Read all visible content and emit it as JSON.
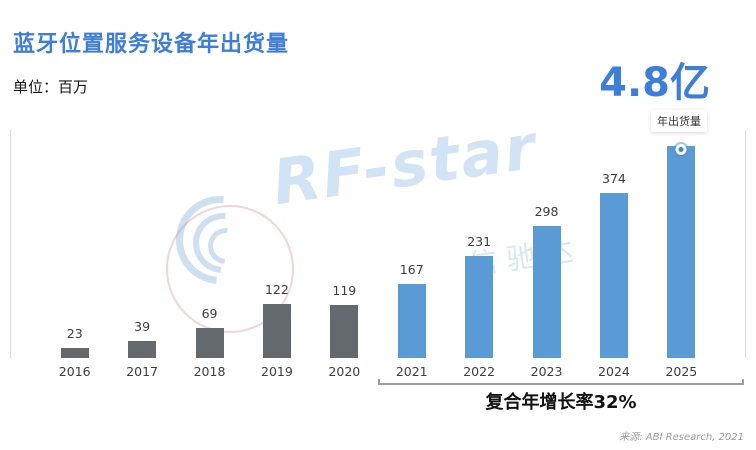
{
  "header": {
    "title": "蓝牙位置服务设备年出货量",
    "unit_label": "单位：百万",
    "highlight_value": "4.8亿"
  },
  "chart_data": {
    "type": "bar",
    "title": "蓝牙位置服务设备年出货量",
    "unit": "百万",
    "categories": [
      "2016",
      "2017",
      "2018",
      "2019",
      "2020",
      "2021",
      "2022",
      "2023",
      "2024",
      "2025"
    ],
    "series": [
      {
        "name": "年出货量",
        "values": [
          23,
          39,
          69,
          122,
          119,
          167,
          231,
          298,
          374,
          480
        ]
      }
    ],
    "data_labels": [
      "23",
      "39",
      "69",
      "122",
      "119",
      "167",
      "231",
      "298",
      "374",
      ""
    ],
    "historical_count": 5,
    "ylim": [
      0,
      500
    ],
    "grid": false,
    "legend": "none",
    "annotation_label": "年出货量",
    "cagr_label": "复合年增长率32%"
  },
  "watermark": {
    "brand_text": "RF-star",
    "brand_cn": "信驰达"
  },
  "footer": {
    "source_text": "来源: ABI Research, 2021"
  },
  "colors": {
    "title_blue": "#3d7edb",
    "bar_gray": "#64696e",
    "bar_blue": "#5b9bd5",
    "watermark_blue": "#6aa6dd",
    "watermark_pink": "#e9aab4"
  }
}
